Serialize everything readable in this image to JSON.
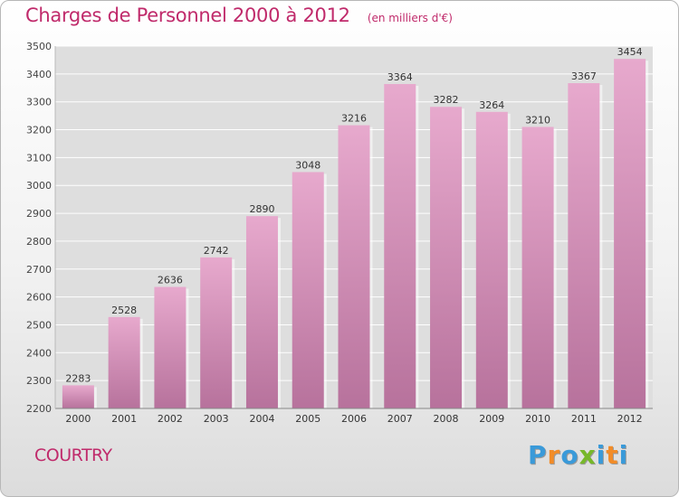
{
  "header": {
    "title": "Charges de Personnel 2000 à 2012",
    "subtitle": "(en milliers d'€)"
  },
  "commune": "COURTRY",
  "logo": {
    "text": "Proxiti",
    "letters": [
      {
        "ch": "P",
        "color": "#3a9ad9"
      },
      {
        "ch": "r",
        "color": "#f28c28"
      },
      {
        "ch": "o",
        "color": "#3a9ad9"
      },
      {
        "ch": "x",
        "color": "#77b82a"
      },
      {
        "ch": "i",
        "color": "#3a9ad9"
      },
      {
        "ch": "t",
        "color": "#f28c28"
      },
      {
        "ch": "i",
        "color": "#3a9ad9"
      }
    ]
  },
  "chart_data": {
    "type": "bar",
    "title": "Charges de Personnel 2000 à 2012",
    "subtitle": "(en milliers d'€)",
    "categories": [
      "2000",
      "2001",
      "2002",
      "2003",
      "2004",
      "2005",
      "2006",
      "2007",
      "2008",
      "2009",
      "2010",
      "2011",
      "2012"
    ],
    "values": [
      2283,
      2528,
      2636,
      2742,
      2890,
      3048,
      3216,
      3364,
      3282,
      3264,
      3210,
      3367,
      3454
    ],
    "ylim": [
      2200,
      3500
    ],
    "yticks": [
      2200,
      2300,
      2400,
      2500,
      2600,
      2700,
      2800,
      2900,
      3000,
      3100,
      3200,
      3300,
      3400,
      3500
    ],
    "grid": true,
    "bar_color": "#d98fb8",
    "grid_color": "#ffffff",
    "plot_bg": "#dedede"
  }
}
